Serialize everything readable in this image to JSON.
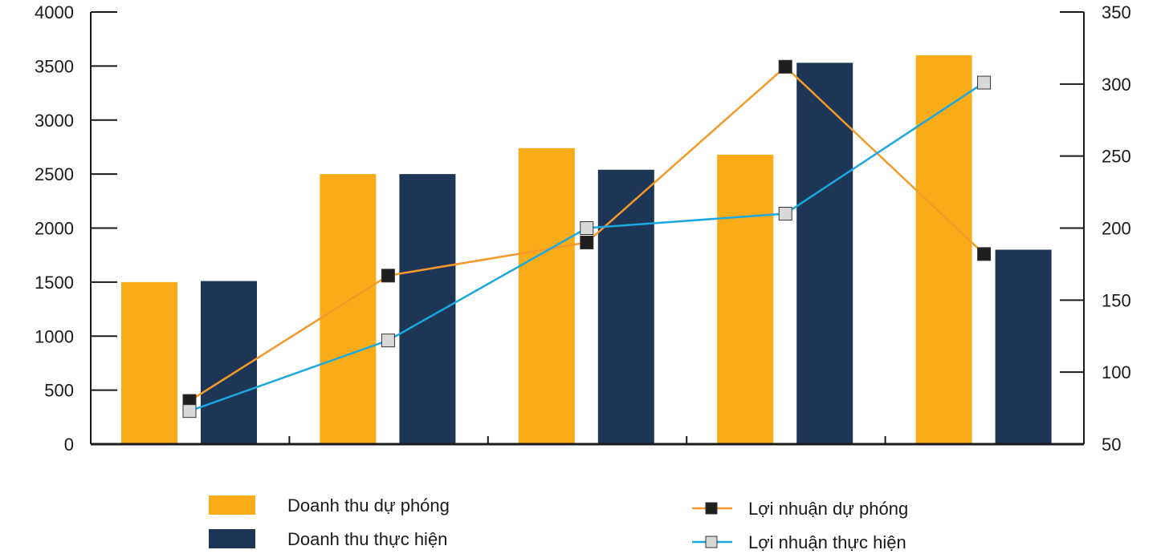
{
  "chart_data": {
    "type": "bar",
    "categories": [
      "",
      "",
      "",
      "",
      ""
    ],
    "series": [
      {
        "name": "Doanh thu dự phóng",
        "kind": "bar",
        "axis": "left",
        "color": "#FAAC18",
        "values": [
          1500,
          2500,
          2740,
          2680,
          3600
        ]
      },
      {
        "name": "Doanh thu thực hiện",
        "kind": "bar",
        "axis": "left",
        "color": "#1E3655",
        "values": [
          1510,
          2500,
          2540,
          3530,
          1800
        ]
      },
      {
        "name": "Lợi nhuận dự phóng",
        "kind": "line",
        "axis": "right",
        "color": "#F39A2B",
        "marker_fill": "#1E1E1E",
        "values": [
          80,
          167,
          190,
          312,
          182
        ]
      },
      {
        "name": "Lợi nhuận thực hiện",
        "kind": "line",
        "axis": "right",
        "color": "#1BA8DF",
        "marker_fill": "#D9D9D9",
        "values": [
          73,
          122,
          200,
          210,
          301
        ]
      }
    ],
    "y_left": {
      "min": 0,
      "max": 4000,
      "ticks": [
        "0",
        "500",
        "1000",
        "1500",
        "2000",
        "2500",
        "3000",
        "3500",
        "4000"
      ]
    },
    "y_right": {
      "min": 50,
      "max": 350,
      "ticks": [
        "50",
        "100",
        "150",
        "200",
        "250",
        "300",
        "350"
      ]
    },
    "grid": false,
    "legend_position": "bottom"
  }
}
